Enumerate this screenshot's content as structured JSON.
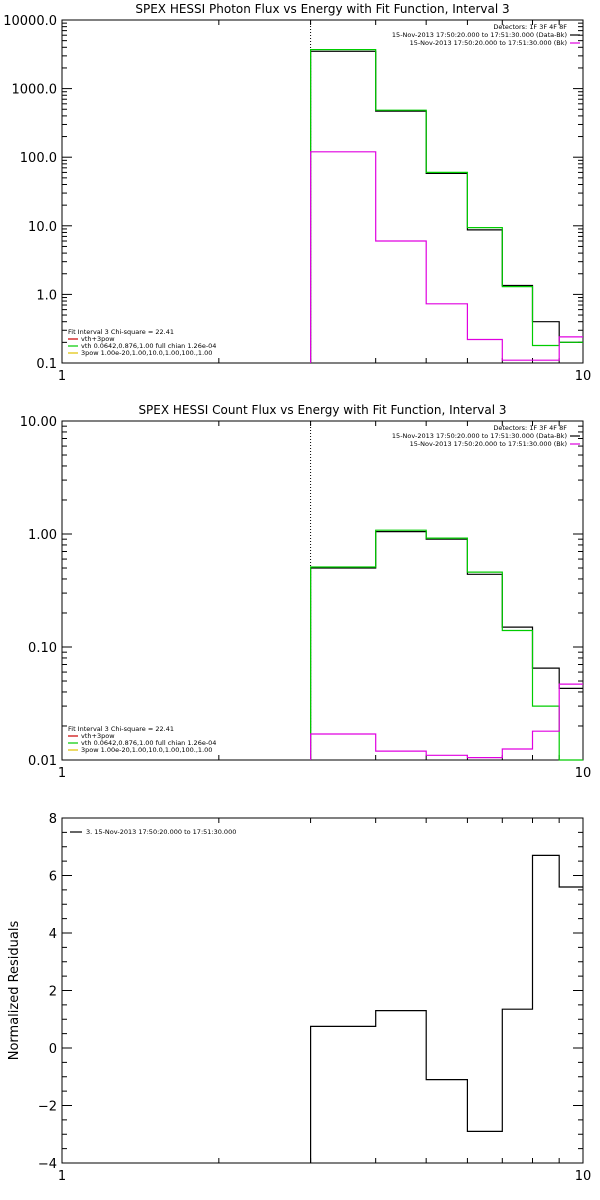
{
  "chart_data": [
    {
      "type": "line",
      "title": "SPEX HESSI Photon Flux vs Energy with Fit Function, Interval 3",
      "xscale": "log",
      "yscale": "log",
      "xlim": [
        1,
        10
      ],
      "ylim": [
        0.1,
        10000
      ],
      "grid": false,
      "x_tick_labels": [
        {
          "v": 1,
          "t": "1"
        },
        {
          "v": 10,
          "t": "10"
        }
      ],
      "y_tick_labels": [
        {
          "v": 10000,
          "t": "10000.0"
        },
        {
          "v": 1000,
          "t": "1000.0"
        },
        {
          "v": 100,
          "t": "100.0"
        },
        {
          "v": 10,
          "t": "10.0"
        },
        {
          "v": 1,
          "t": "1.0"
        },
        {
          "v": 0.1,
          "t": "0.1"
        }
      ],
      "vline": 3,
      "legend_top_right": [
        {
          "text": "Detectors: 1F 3F 4F 8F",
          "color": ""
        },
        {
          "text": "15-Nov-2013 17:50:20.000 to 17:51:30.000 (Data-Bk)",
          "color": "#000000"
        },
        {
          "text": "15-Nov-2013 17:50:20.000 to 17:51:30.000 (Bk)",
          "color": "#e000e0"
        }
      ],
      "legend_bottom_left": [
        {
          "text": "Fit Interval 3   Chi-square = 22.41",
          "color": ""
        },
        {
          "text": "vth+3pow",
          "color": "#cc0000"
        },
        {
          "text": "vth 0.0642,0.876,1.00  full chian 1.26e-04",
          "color": "#00cc00"
        },
        {
          "text": "3pow 1.00e-20,1.00,10.0,1.00,100.,1.00",
          "color": "#e0c000"
        }
      ],
      "edges": [
        3,
        4,
        5,
        6,
        7,
        8,
        9,
        10
      ],
      "series": [
        {
          "color": "#000000",
          "values": [
            3500,
            470,
            58,
            8.7,
            1.35,
            0.4,
            0.2
          ]
        },
        {
          "color": "#00cc00",
          "values": [
            3700,
            485,
            60,
            9.4,
            1.3,
            0.18,
            0.2
          ]
        },
        {
          "color": "#e000e0",
          "values": [
            120,
            6.0,
            0.73,
            0.22,
            0.11,
            0.11,
            0.24
          ]
        }
      ]
    },
    {
      "type": "line",
      "title": "SPEX HESSI Count Flux vs Energy with Fit Function, Interval 3",
      "xscale": "log",
      "yscale": "log",
      "xlim": [
        1,
        10
      ],
      "ylim": [
        0.01,
        10
      ],
      "grid": false,
      "x_tick_labels": [
        {
          "v": 1,
          "t": "1"
        },
        {
          "v": 10,
          "t": "10"
        }
      ],
      "y_tick_labels": [
        {
          "v": 10,
          "t": "10.00"
        },
        {
          "v": 1,
          "t": "1.00"
        },
        {
          "v": 0.1,
          "t": "0.10"
        },
        {
          "v": 0.01,
          "t": "0.01"
        }
      ],
      "vline": 3,
      "legend_top_right": [
        {
          "text": "Detectors: 1F 3F 4F 8F",
          "color": ""
        },
        {
          "text": "15-Nov-2013 17:50:20.000 to 17:51:30.000 (Data-Bk)",
          "color": "#000000"
        },
        {
          "text": "15-Nov-2013 17:50:20.000 to 17:51:30.000 (Bk)",
          "color": "#e000e0"
        }
      ],
      "legend_bottom_left": [
        {
          "text": "Fit Interval 3   Chi-square = 22.41",
          "color": ""
        },
        {
          "text": "vth+3pow",
          "color": "#cc0000"
        },
        {
          "text": "vth 0.0642,0.876,1.00  full chian 1.26e-04",
          "color": "#00cc00"
        },
        {
          "text": "3pow 1.00e-20,1.00,10.0,1.00,100.,1.00",
          "color": "#e0c000"
        }
      ],
      "edges": [
        3,
        4,
        5,
        6,
        7,
        8,
        9,
        10
      ],
      "series": [
        {
          "color": "#000000",
          "values": [
            0.5,
            1.05,
            0.9,
            0.44,
            0.15,
            0.065,
            0.043
          ]
        },
        {
          "color": "#00cc00",
          "values": [
            0.51,
            1.08,
            0.92,
            0.46,
            0.14,
            0.03,
            0.008
          ]
        },
        {
          "color": "#e000e0",
          "values": [
            0.017,
            0.012,
            0.011,
            0.0105,
            0.0125,
            0.018,
            0.047
          ]
        }
      ]
    },
    {
      "type": "line",
      "title": "",
      "xscale": "log",
      "yscale": "linear",
      "xlim": [
        1,
        10
      ],
      "ylim": [
        -4,
        8
      ],
      "grid": false,
      "ylabel": "Normalized Residuals",
      "x_tick_labels": [
        {
          "v": 1,
          "t": "1"
        },
        {
          "v": 10,
          "t": "10"
        }
      ],
      "y_tick_labels": [
        {
          "v": 8,
          "t": "8"
        },
        {
          "v": 6,
          "t": "6"
        },
        {
          "v": 4,
          "t": "4"
        },
        {
          "v": 2,
          "t": "2"
        },
        {
          "v": 0,
          "t": "0"
        },
        {
          "v": -2,
          "t": "−2"
        },
        {
          "v": -4,
          "t": "−4"
        }
      ],
      "legend_top_left": [
        {
          "text": "3. 15-Nov-2013 17:50:20.000 to 17:51:30.000",
          "color": "#000000"
        }
      ],
      "edges": [
        3,
        4,
        5,
        6,
        7,
        8,
        9,
        10
      ],
      "series": [
        {
          "color": "#000000",
          "values": [
            0.75,
            1.3,
            -1.1,
            -2.9,
            1.35,
            6.7,
            5.6
          ]
        }
      ]
    }
  ]
}
